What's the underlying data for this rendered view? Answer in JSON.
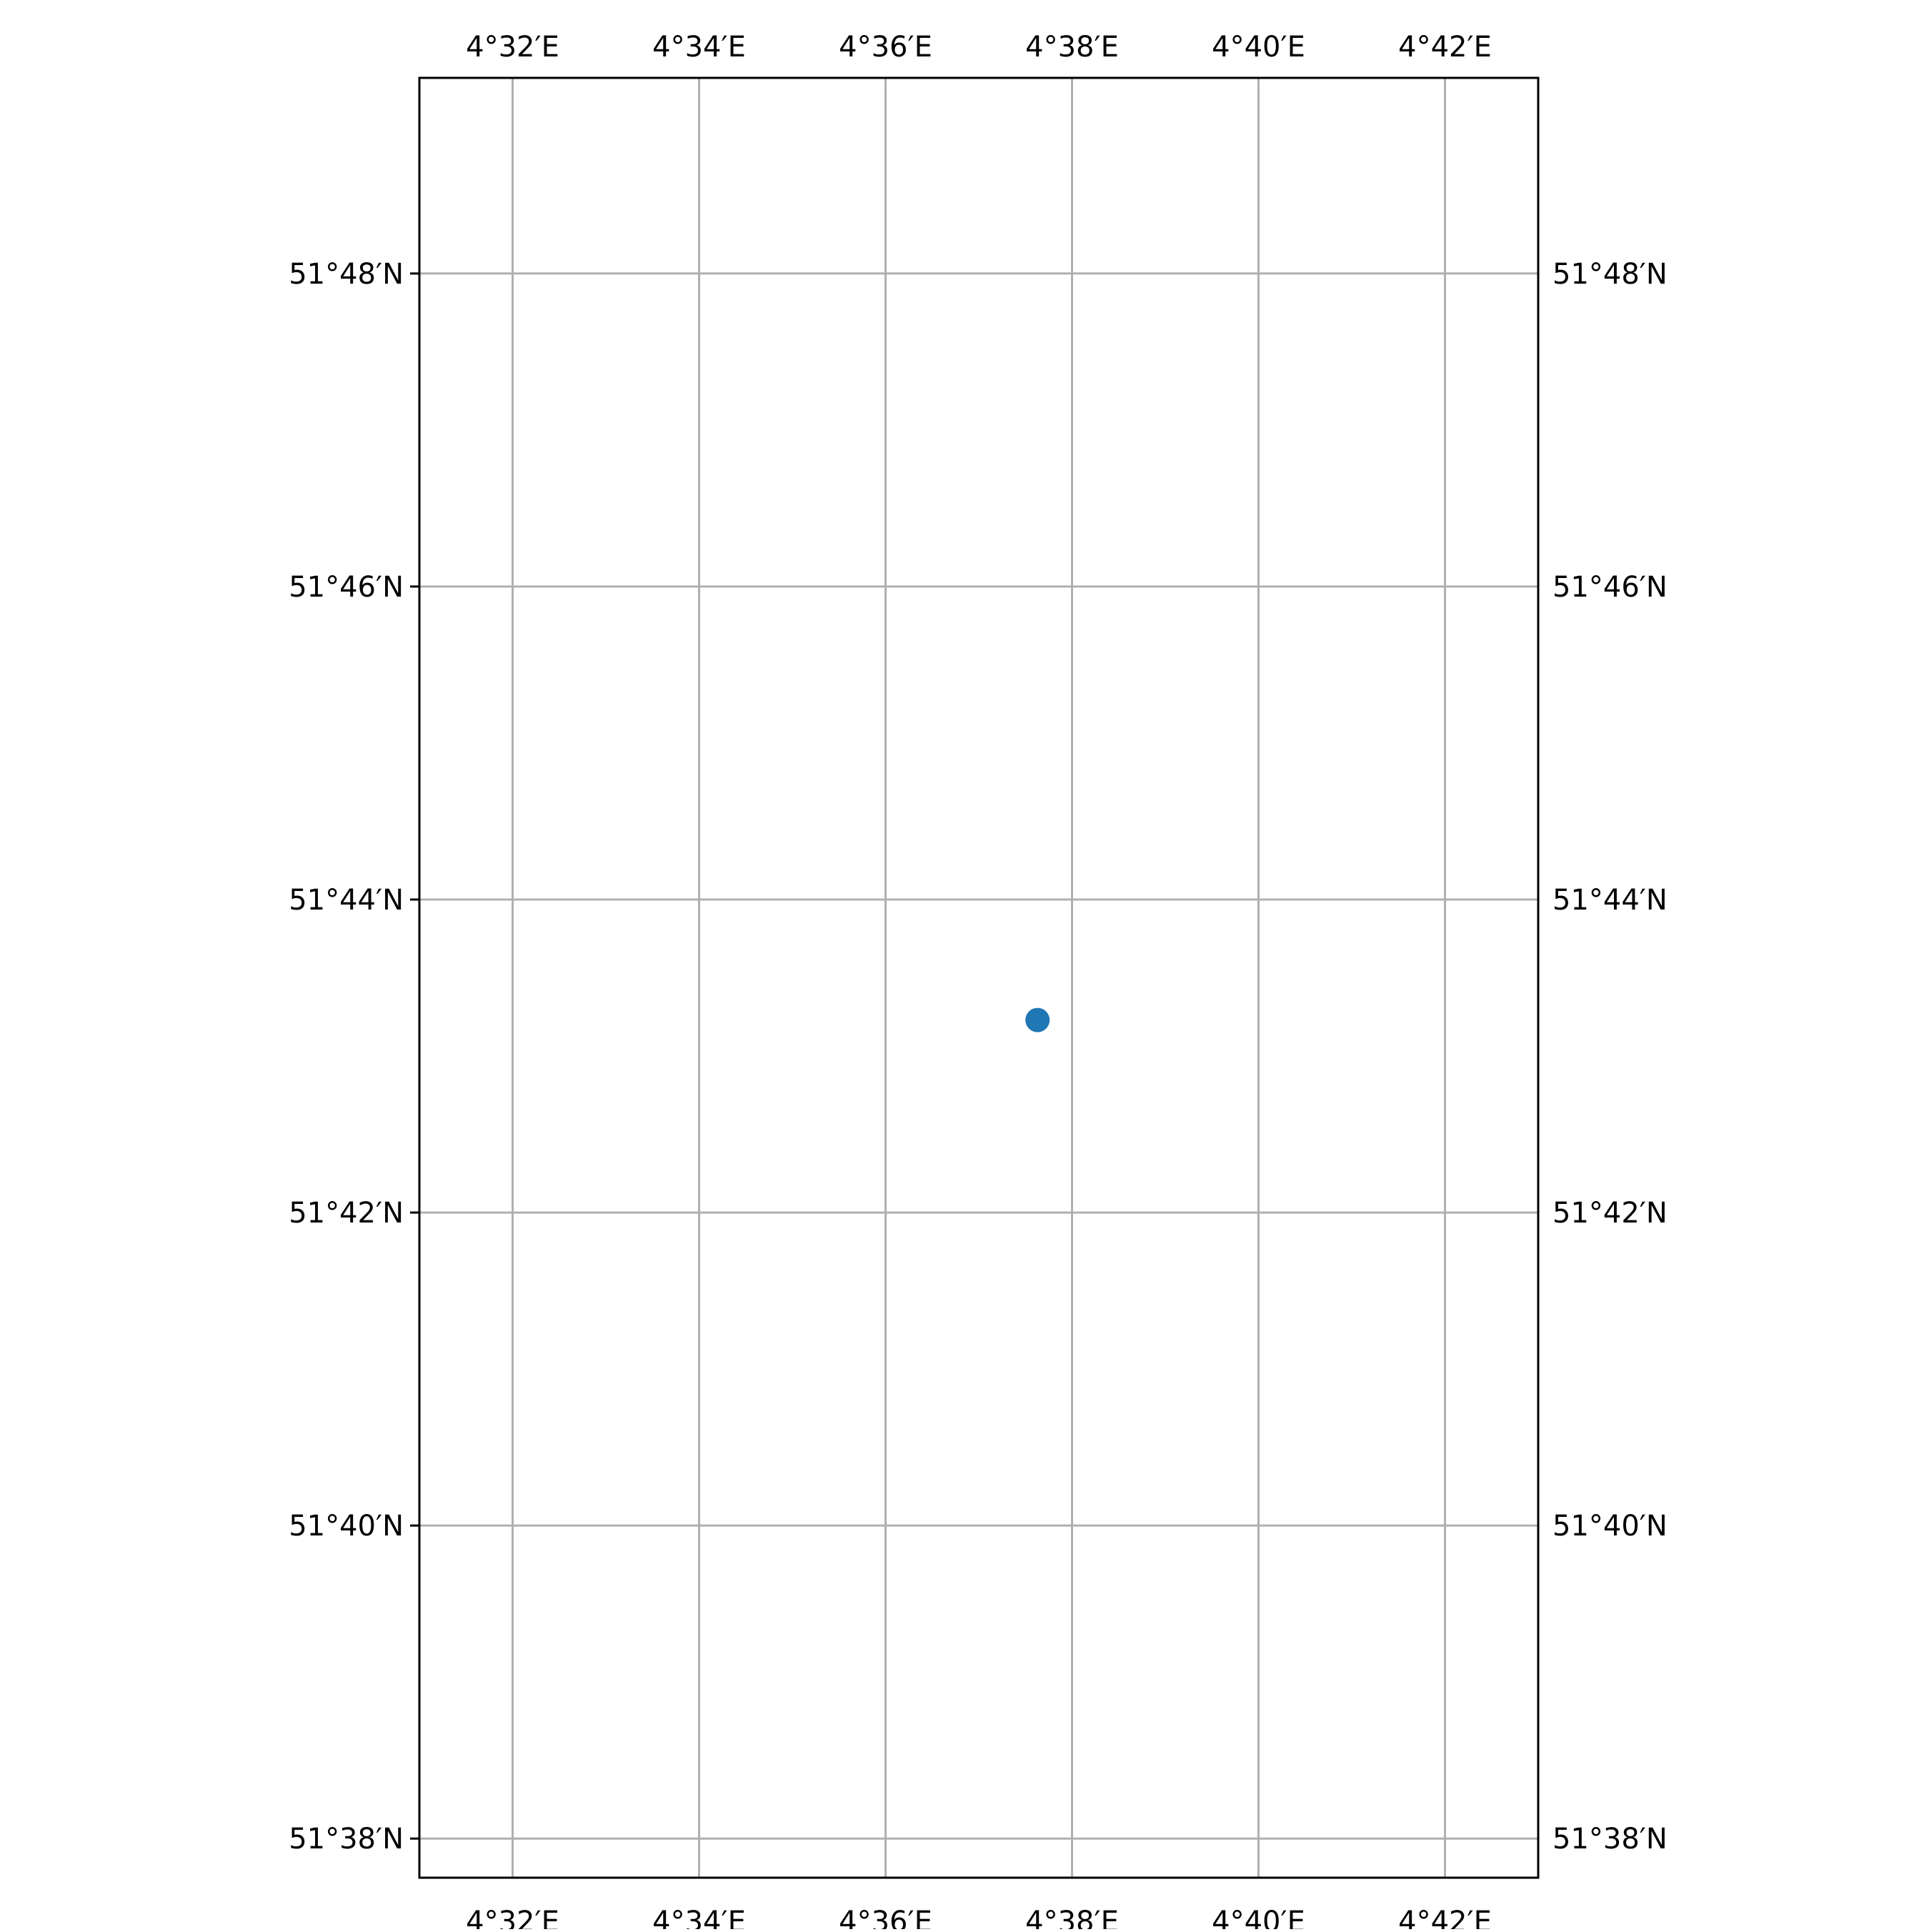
{
  "chart_data": {
    "type": "scatter",
    "projection": "PlateCarree",
    "xlim_minutes": [
      271.0,
      283.0
    ],
    "ylim_minutes": [
      3097.75,
      3109.25
    ],
    "grid": true,
    "gridline_color": "#b0b0b0",
    "frame_color": "#000000",
    "point_color": "#1f77b4",
    "lon_ticks": [
      {
        "minutes": 272,
        "label": "4°32′E"
      },
      {
        "minutes": 274,
        "label": "4°34′E"
      },
      {
        "minutes": 276,
        "label": "4°36′E"
      },
      {
        "minutes": 278,
        "label": "4°38′E"
      },
      {
        "minutes": 280,
        "label": "4°40′E"
      },
      {
        "minutes": 282,
        "label": "4°42′E"
      }
    ],
    "lat_ticks": [
      {
        "minutes": 3108,
        "label": "51°48′N"
      },
      {
        "minutes": 3106,
        "label": "51°46′N"
      },
      {
        "minutes": 3104,
        "label": "51°44′N"
      },
      {
        "minutes": 3102,
        "label": "51°42′N"
      },
      {
        "minutes": 3100,
        "label": "51°40′N"
      },
      {
        "minutes": 3098,
        "label": "51°38′N"
      }
    ],
    "points": [
      {
        "lon_minutes": 277.63,
        "lat_minutes": 3103.23
      }
    ],
    "tick_label_sides": [
      "top",
      "bottom",
      "left",
      "right"
    ]
  }
}
